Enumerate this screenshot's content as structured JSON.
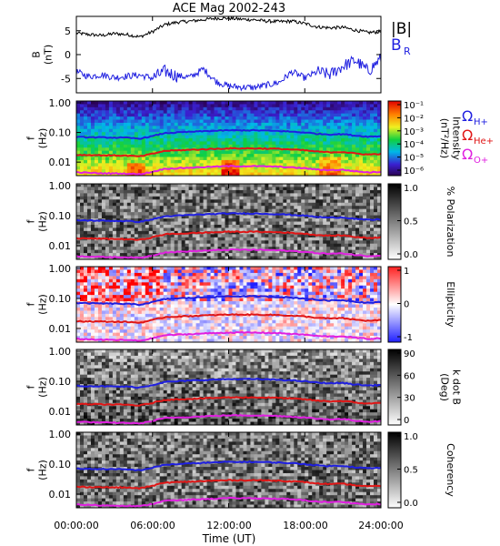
{
  "title": "ACE Mag 2002-243",
  "xaxis": {
    "label": "Time (UT)",
    "ticks": [
      "00:00:00",
      "06:00:00",
      "12:00:00",
      "18:00:00",
      "24:00:00"
    ],
    "tick_hours": [
      0,
      6,
      12,
      18,
      24
    ],
    "range_hours": [
      0,
      24
    ]
  },
  "colors": {
    "black": "#000000",
    "blue": "#1f1fe0",
    "red": "#e01616",
    "magenta": "#e020e0"
  },
  "chart_data": [
    {
      "type": "line",
      "panel": "B",
      "ylabel": [
        "B",
        "(nT)"
      ],
      "ylim": [
        -8,
        8
      ],
      "yticks": [
        -5,
        0,
        5
      ],
      "legend": [
        {
          "text": "|B|",
          "color": "black"
        },
        {
          "text": "B",
          "sub": "R",
          "color": "blue"
        }
      ],
      "x": [
        0,
        1,
        2,
        3,
        4,
        5,
        6,
        7,
        8,
        9,
        10,
        11,
        12,
        13,
        14,
        15,
        16,
        17,
        18,
        19,
        20,
        21,
        22,
        23,
        24
      ],
      "series": [
        {
          "name": "|B|",
          "color": "black",
          "values": [
            4.5,
            4.2,
            4.0,
            4.4,
            4.2,
            3.7,
            4.8,
            6.3,
            6.8,
            7.0,
            7.3,
            7.6,
            7.6,
            7.4,
            7.3,
            7.0,
            6.9,
            7.0,
            6.5,
            5.8,
            5.6,
            5.7,
            5.1,
            4.6,
            4.8
          ]
        },
        {
          "name": "B_R",
          "color": "blue",
          "values": [
            -3.6,
            -4.6,
            -4.2,
            -4.8,
            -4.5,
            -4.3,
            -4.9,
            -3.5,
            -4.5,
            -4.7,
            -3.0,
            -5.6,
            -6.6,
            -6.8,
            -6.9,
            -6.4,
            -5.8,
            -3.6,
            -4.9,
            -3.6,
            -4.2,
            -2.4,
            -1.2,
            -3.5,
            -0.8
          ]
        }
      ]
    },
    {
      "type": "heatmap",
      "panel": "intensity",
      "ylabel": [
        "f",
        "(Hz)"
      ],
      "ylim": [
        0.003,
        1.0
      ],
      "yticks": [
        "1.00",
        "0.10",
        "0.01"
      ],
      "colorbar": {
        "label": [
          "Intensity",
          "(nT²/Hz)"
        ],
        "ticks": [
          "10⁻¹",
          "10⁻²",
          "10⁻³",
          "10⁻⁴",
          "10⁻⁵",
          "10⁻⁶"
        ],
        "colormap": "rainbow"
      },
      "legend": [
        {
          "text": "Ω",
          "sub": "H+",
          "color": "blue"
        },
        {
          "text": "Ω",
          "sub": "He+",
          "color": "red"
        },
        {
          "text": "Ω",
          "sub": "O+",
          "color": "magenta"
        }
      ]
    },
    {
      "type": "heatmap",
      "panel": "polarization",
      "ylabel": [
        "f",
        "(Hz)"
      ],
      "yticks": [
        "1.00",
        "0.10",
        "0.01"
      ],
      "colorbar": {
        "label": [
          "% Polarization"
        ],
        "ticks": [
          "1.0",
          "0.5",
          "0.0"
        ],
        "colormap": "gray"
      }
    },
    {
      "type": "heatmap",
      "panel": "ellipticity",
      "ylabel": [
        "f",
        "(Hz)"
      ],
      "yticks": [
        "1.00",
        "0.10",
        "0.01"
      ],
      "colorbar": {
        "label": [
          "Ellipticity"
        ],
        "ticks": [
          "1",
          "0",
          "-1"
        ],
        "colormap": "bwr"
      }
    },
    {
      "type": "heatmap",
      "panel": "kdotb",
      "ylabel": [
        "f",
        "(Hz)"
      ],
      "yticks": [
        "1.00",
        "0.10",
        "0.01"
      ],
      "colorbar": {
        "label": [
          "k dot B",
          "(Deg)"
        ],
        "ticks": [
          "90",
          "60",
          "30",
          "0"
        ],
        "colormap": "gray"
      }
    },
    {
      "type": "heatmap",
      "panel": "coherency",
      "ylabel": [
        "f",
        "(Hz)"
      ],
      "yticks": [
        "1.00",
        "0.10",
        "0.01"
      ],
      "colorbar": {
        "label": [
          "Coherency"
        ],
        "ticks": [
          "1.0",
          "0.5",
          "0.0"
        ],
        "colormap": "gray"
      }
    }
  ],
  "gyrofrequency_hz": {
    "x": [
      0,
      2,
      4,
      5,
      6,
      7,
      8,
      10,
      12,
      14,
      16,
      18,
      19,
      20,
      21,
      22,
      23,
      24
    ],
    "H+": [
      0.07,
      0.068,
      0.066,
      0.062,
      0.075,
      0.095,
      0.1,
      0.11,
      0.118,
      0.118,
      0.112,
      0.1,
      0.09,
      0.086,
      0.088,
      0.078,
      0.072,
      0.075
    ],
    "He+": [
      0.0175,
      0.017,
      0.0165,
      0.0155,
      0.019,
      0.024,
      0.025,
      0.027,
      0.029,
      0.029,
      0.028,
      0.025,
      0.0225,
      0.0215,
      0.022,
      0.0195,
      0.018,
      0.019
    ],
    "O+": [
      0.0045,
      0.0042,
      0.0041,
      0.0039,
      0.0047,
      0.006,
      0.0062,
      0.0068,
      0.0073,
      0.0073,
      0.007,
      0.0062,
      0.0056,
      0.0054,
      0.0055,
      0.0049,
      0.0045,
      0.0047
    ]
  }
}
